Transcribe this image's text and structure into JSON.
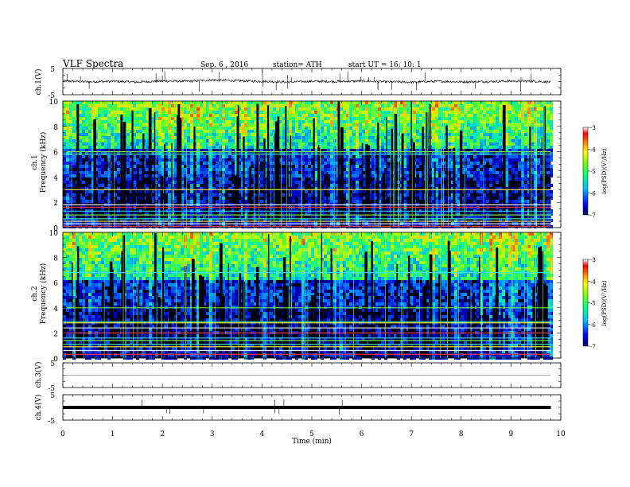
{
  "header": {
    "title": "VLF  Spectra",
    "date": "Sep. 6  , 2016",
    "station": "station= ATH",
    "start": "start  UT  =   16: 10: 1"
  },
  "chart_data": [
    {
      "type": "line",
      "name": "ch1-waveform",
      "ylabel": "ch.1(V)",
      "ylim": [
        -5,
        5
      ],
      "ytick_labels": [
        "5",
        "-5"
      ],
      "xlim": [
        0,
        10
      ],
      "x": [
        0,
        0.5,
        1,
        1.5,
        2,
        2.5,
        3,
        3.5,
        4,
        4.5,
        5,
        5.5,
        6,
        6.5,
        7,
        7.5,
        8,
        8.5,
        9,
        9.5,
        9.8
      ],
      "y": [
        0.2,
        -0.1,
        0.1,
        -0.2,
        0.2,
        0.1,
        0.6,
        0.3,
        0.1,
        -0.2,
        0.1,
        0.0,
        0.2,
        -0.1,
        -0.2,
        0.1,
        -0.1,
        0.0,
        0.2,
        0.1,
        -0.2
      ],
      "color": "#000000"
    },
    {
      "type": "heatmap",
      "name": "ch1-spectrogram",
      "ylabel_top": "ch.1",
      "ylabel": "Frequency  (kHz)",
      "ylim": [
        0,
        10
      ],
      "ytick_labels": [
        "0",
        "2",
        "4",
        "6",
        "8",
        "10"
      ],
      "xlim": [
        0,
        10
      ],
      "colorbar": {
        "label": "log(PSD)(V²/Hz)",
        "range": [
          -7,
          -3
        ],
        "tick_labels": [
          "-3",
          "-4",
          "-5",
          "-6",
          "-7"
        ]
      },
      "bright_lines_khz": [
        0.1,
        0.3,
        0.5,
        0.7,
        1.0,
        1.3,
        1.6,
        1.8,
        3.0,
        5.8,
        6.0
      ]
    },
    {
      "type": "heatmap",
      "name": "ch2-spectrogram",
      "ylabel_top": "ch.2",
      "ylabel": "Frequency  (kHz)",
      "ylim": [
        0,
        10
      ],
      "ytick_labels": [
        "0",
        "2",
        "4",
        "6",
        "8",
        "10"
      ],
      "xlim": [
        0,
        10
      ],
      "colorbar": {
        "label": "log(PSD)(V²/Hz)",
        "range": [
          -7,
          -3
        ],
        "tick_labels": [
          "-3",
          "-4",
          "-5",
          "-6",
          "-7"
        ]
      },
      "bright_lines_khz": [
        0.3,
        0.6,
        0.9,
        1.1,
        1.4,
        1.6,
        2.0,
        2.4,
        2.8,
        2.9,
        4.0,
        6.8
      ]
    },
    {
      "type": "line",
      "name": "ch3-waveform",
      "ylabel": "ch.3(V)",
      "ylim": [
        -5,
        5
      ],
      "ytick_labels": [
        "5",
        "-5"
      ],
      "xlim": [
        0,
        10
      ],
      "x": [
        0,
        9.8
      ],
      "y": [
        0,
        0
      ],
      "color": "#555555"
    },
    {
      "type": "line",
      "name": "ch4-waveform",
      "ylabel": "ch.4(V)",
      "ylim": [
        -5,
        5
      ],
      "ytick_labels": [
        "5",
        "-5"
      ],
      "xlim": [
        0,
        10
      ],
      "x": [
        0,
        9.8
      ],
      "y": [
        0,
        0
      ],
      "color": "#000000"
    }
  ],
  "xaxis": {
    "label": "Time  (min)",
    "tick_labels": [
      "0",
      "1",
      "2",
      "3",
      "4",
      "5",
      "6",
      "7",
      "8",
      "9",
      "10"
    ]
  }
}
